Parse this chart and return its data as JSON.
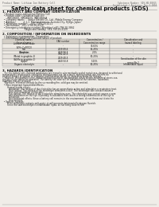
{
  "bg_color": "#f0ede8",
  "title": "Safety data sheet for chemical products (SDS)",
  "header_left": "Product Name: Lithium Ion Battery Cell",
  "header_right_line1": "Substance Number: SDS-HB-00015",
  "header_right_line2": "Established / Revision: Dec.1.2010",
  "section1_title": "1. PRODUCT AND COMPANY IDENTIFICATION",
  "section1_lines": [
    "  • Product name: Lithium Ion Battery Cell",
    "  • Product code: Cylindrical-type cell",
    "       INR18650J, INR18650L, INR18650A",
    "  • Company name:     Sanyo Electric Co., Ltd., Mobile Energy Company",
    "  • Address:           2-1-1  Kamionakamura, Sumoto-City, Hyogo, Japan",
    "  • Telephone number:    +81-(799)-20-4111",
    "  • Fax number:  +81-1799-26-4129",
    "  • Emergency telephone number (Weekday) +81-799-20-3862",
    "                                (Night and holiday) +81-799-26-4129"
  ],
  "section2_title": "2. COMPOSITION / INFORMATION ON INGREDIENTS",
  "section2_sub": "  • Substance or preparation: Preparation",
  "section2_sub2": "  • Information about the chemical nature of product:",
  "table_header_row": [
    "Chemical name /\nSeveral name",
    "CAS number",
    "Concentration /\nConcentration range",
    "Classification and\nhazard labeling"
  ],
  "table_rows": [
    [
      "Lithium cobalt oxide\n(LiMn-Co/NiO2)",
      "-",
      "30-60%",
      "-"
    ],
    [
      "Iron",
      "7439-89-6",
      "15-25%",
      "-"
    ],
    [
      "Aluminum",
      "7429-90-5",
      "2-6%",
      "-"
    ],
    [
      "Graphite\n(Metal in graphite-1)\n(Al-Mo in graphite-1)",
      "7782-42-5\n7429-40-5",
      "10-20%",
      "-"
    ],
    [
      "Copper",
      "7440-50-8",
      "5-15%",
      "Sensitization of the skin\ngroup No.2"
    ],
    [
      "Organic electrolyte",
      "-",
      "10-25%",
      "Inflammable liquid"
    ]
  ],
  "section3_title": "3. HAZARDS IDENTIFICATION",
  "section3_para1": [
    "   For the battery cell, chemical substances are stored in a hermetically sealed metal case, designed to withstand",
    "temperatures in processes-conditions during normal use. As a result, during normal use, there is no",
    "physical danger of ignition or explosion and therefore danger of hazardous materials leakage.",
    "   However, if exposed to a fire, added mechanical shocks, decomposed, when electro-mechanical stress use,",
    "the gas inside cannot be operated. The battery cell case will be breached at the extreme, hazardous",
    "materials may be released.",
    "   Moreover, if heated strongly by the surrounding fire, solid gas may be emitted."
  ],
  "section3_bullet1": "  • Most important hazard and effects:",
  "section3_health": "       Human health effects:",
  "section3_health_lines": [
    "         Inhalation: The release of the electrolyte has an anaesthesia action and stimulates a respiratory tract.",
    "         Skin contact: The release of the electrolyte stimulates a skin. The electrolyte skin contact causes a",
    "         sore and stimulation on the skin.",
    "         Eye contact: The release of the electrolyte stimulates eyes. The electrolyte eye contact causes a sore",
    "         and stimulation on the eye. Especially, a substance that causes a strong inflammation of the eye is",
    "         contained.",
    "         Environmental effects: Since a battery cell remains in the environment, do not throw out it into the",
    "         environment."
  ],
  "section3_bullet2": "  • Specific hazards:",
  "section3_specific": [
    "       If the electrolyte contacts with water, it will generate detrimental hydrogen fluoride.",
    "       Since the said electrolyte is inflammable liquid, do not bring close to fire."
  ]
}
